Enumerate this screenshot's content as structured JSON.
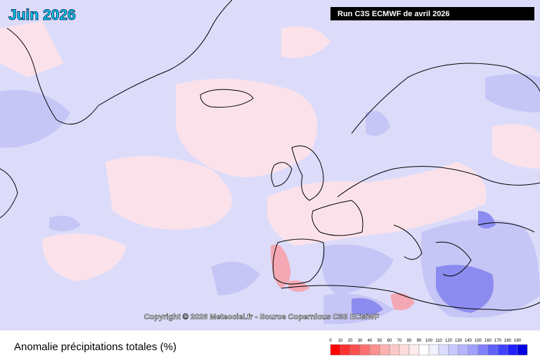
{
  "header": {
    "title": "Juin 2026",
    "run": "Run C3S ECMWF de avril 2026"
  },
  "copyright": "Copyright © 2026 Meteociel.fr - Source Copernicus C3S ECMWF",
  "legend": {
    "caption": "Anomalie précipitations totales (%)",
    "labels": [
      0,
      10,
      20,
      30,
      40,
      50,
      60,
      70,
      80,
      90,
      100,
      110,
      120,
      130,
      140,
      150,
      160,
      170,
      180,
      190
    ],
    "colors": [
      "#ff0000",
      "#ff3030",
      "#ff5050",
      "#ff7070",
      "#ff9090",
      "#ffb0b0",
      "#ffc8c8",
      "#ffdcdc",
      "#ffecec",
      "#ffffff",
      "#f0f0ff",
      "#dcdcff",
      "#c8c8ff",
      "#b4b4ff",
      "#a0a0ff",
      "#8080ff",
      "#6060ff",
      "#4040ff",
      "#2020ff",
      "#0000e0"
    ]
  }
}
